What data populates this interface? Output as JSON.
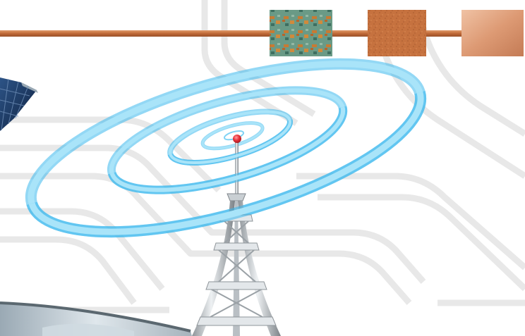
{
  "colors": {
    "background": "#ffffff",
    "circuit_line": "#e6e6e6",
    "copper_wire": "#c97846",
    "signal_ring": "#7fd3f5",
    "signal_ring_edge": "#3ab8ec",
    "tower_steel": "#d9dde0",
    "tower_shadow": "#8e9499",
    "beacon": "#e8323a",
    "solar_panel": "#1d3a63",
    "dish": "#b9c6cf"
  },
  "swatches": [
    {
      "name": "oxidized-copper",
      "icon": "patina-texture-icon",
      "base": "#5c8f7a",
      "accent": "#c9782f"
    },
    {
      "name": "raw-copper",
      "icon": "rough-copper-texture-icon",
      "base": "#c4703f",
      "accent": "#a85a30"
    },
    {
      "name": "polished-copper",
      "icon": "polished-copper-texture-icon",
      "base": "#e3a582",
      "accent": "#c8815c"
    }
  ],
  "signal_rings": 4
}
